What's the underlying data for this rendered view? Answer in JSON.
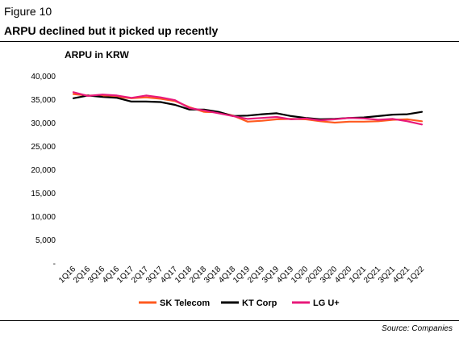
{
  "figure": {
    "label": "Figure 10",
    "title": "ARPU declined but it picked up recently",
    "source": "Source: Companies"
  },
  "chart_data": {
    "type": "line",
    "ylabel": "ARPU in KRW",
    "ylim": [
      0,
      40000
    ],
    "yticks": [
      {
        "value": 0,
        "label": "-"
      },
      {
        "value": 5000,
        "label": "5,000"
      },
      {
        "value": 10000,
        "label": "10,000"
      },
      {
        "value": 15000,
        "label": "15,000"
      },
      {
        "value": 20000,
        "label": "20,000"
      },
      {
        "value": 25000,
        "label": "25,000"
      },
      {
        "value": 30000,
        "label": "30,000"
      },
      {
        "value": 35000,
        "label": "35,000"
      },
      {
        "value": 40000,
        "label": "40,000"
      }
    ],
    "categories": [
      "1Q16",
      "2Q16",
      "3Q16",
      "4Q16",
      "1Q17",
      "2Q17",
      "3Q17",
      "4Q17",
      "1Q18",
      "2Q18",
      "3Q18",
      "4Q18",
      "1Q19",
      "2Q19",
      "3Q19",
      "4Q19",
      "1Q20",
      "2Q20",
      "3Q20",
      "4Q20",
      "1Q21",
      "2Q21",
      "3Q21",
      "4Q21",
      "1Q22"
    ],
    "grid": false,
    "legend_position": "bottom",
    "series": [
      {
        "name": "SK Telecom",
        "color": "#ff5a1f",
        "values": [
          36100,
          35800,
          35700,
          35500,
          35200,
          35400,
          35100,
          34600,
          33300,
          32300,
          32200,
          31500,
          30200,
          30400,
          30700,
          30800,
          30700,
          30300,
          30000,
          30200,
          30200,
          30300,
          30600,
          30700,
          30300
        ]
      },
      {
        "name": "KT Corp",
        "color": "#000000",
        "values": [
          35200,
          35800,
          35500,
          35300,
          34500,
          34500,
          34400,
          33800,
          32800,
          32800,
          32300,
          31400,
          31500,
          31800,
          32000,
          31400,
          31000,
          30700,
          30800,
          31000,
          31100,
          31400,
          31700,
          31800,
          32300
        ]
      },
      {
        "name": "LG U+",
        "color": "#e8197a",
        "values": [
          36500,
          35700,
          36000,
          35800,
          35300,
          35800,
          35400,
          34800,
          33100,
          32600,
          32000,
          31400,
          30800,
          31000,
          31200,
          30700,
          30900,
          30500,
          30700,
          31000,
          30900,
          30600,
          30800,
          30300,
          29600
        ]
      }
    ]
  }
}
